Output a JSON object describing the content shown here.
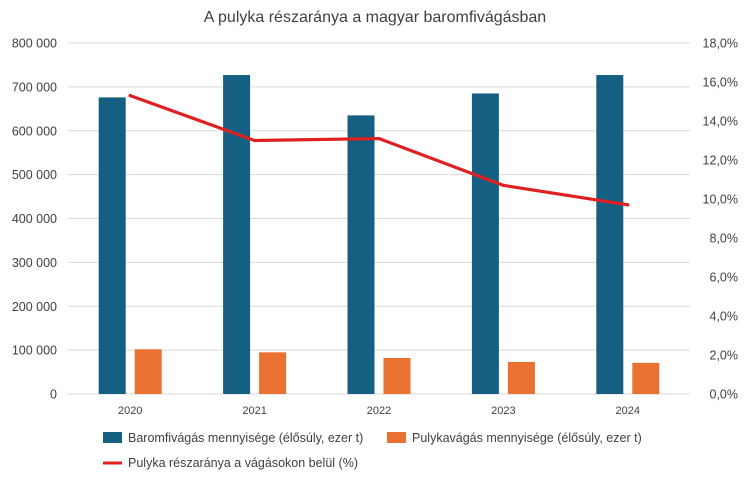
{
  "chart_data": {
    "type": "bar",
    "title": "A pulyka részaránya a magyar baromfivágásban",
    "categories": [
      "2020",
      "2021",
      "2022",
      "2023",
      "2024"
    ],
    "series": [
      {
        "name": "Baromfivágás mennyisége (élősúly, ezer t)",
        "type": "bar",
        "axis": "left",
        "color": "#156082",
        "values": [
          676000,
          727000,
          635000,
          685000,
          727000
        ]
      },
      {
        "name": "Pulykavágás mennyisége (élősúly, ezer t)",
        "type": "bar",
        "axis": "left",
        "color": "#E97132",
        "values": [
          102000,
          95000,
          82000,
          73000,
          71000
        ]
      },
      {
        "name": "Pulyka részaránya a vágásokon belül (%)",
        "type": "line",
        "axis": "right",
        "color": "#E02020",
        "values": [
          15.3,
          13.0,
          13.1,
          10.7,
          9.7
        ]
      }
    ],
    "y_left": {
      "min": 0,
      "max": 800000,
      "ticks": [
        0,
        100000,
        200000,
        300000,
        400000,
        500000,
        600000,
        700000,
        800000
      ],
      "tick_labels": [
        "0",
        "100 000",
        "200 000",
        "300 000",
        "400 000",
        "500 000",
        "600 000",
        "700 000",
        "800 000"
      ]
    },
    "y_right": {
      "min": 0,
      "max": 18,
      "ticks": [
        0,
        2,
        4,
        6,
        8,
        10,
        12,
        14,
        16,
        18
      ],
      "tick_labels": [
        "0,0%",
        "2,0%",
        "4,0%",
        "6,0%",
        "8,0%",
        "10,0%",
        "12,0%",
        "14,0%",
        "16,0%",
        "18,0%"
      ]
    },
    "grid": true,
    "legend_position": "bottom"
  }
}
